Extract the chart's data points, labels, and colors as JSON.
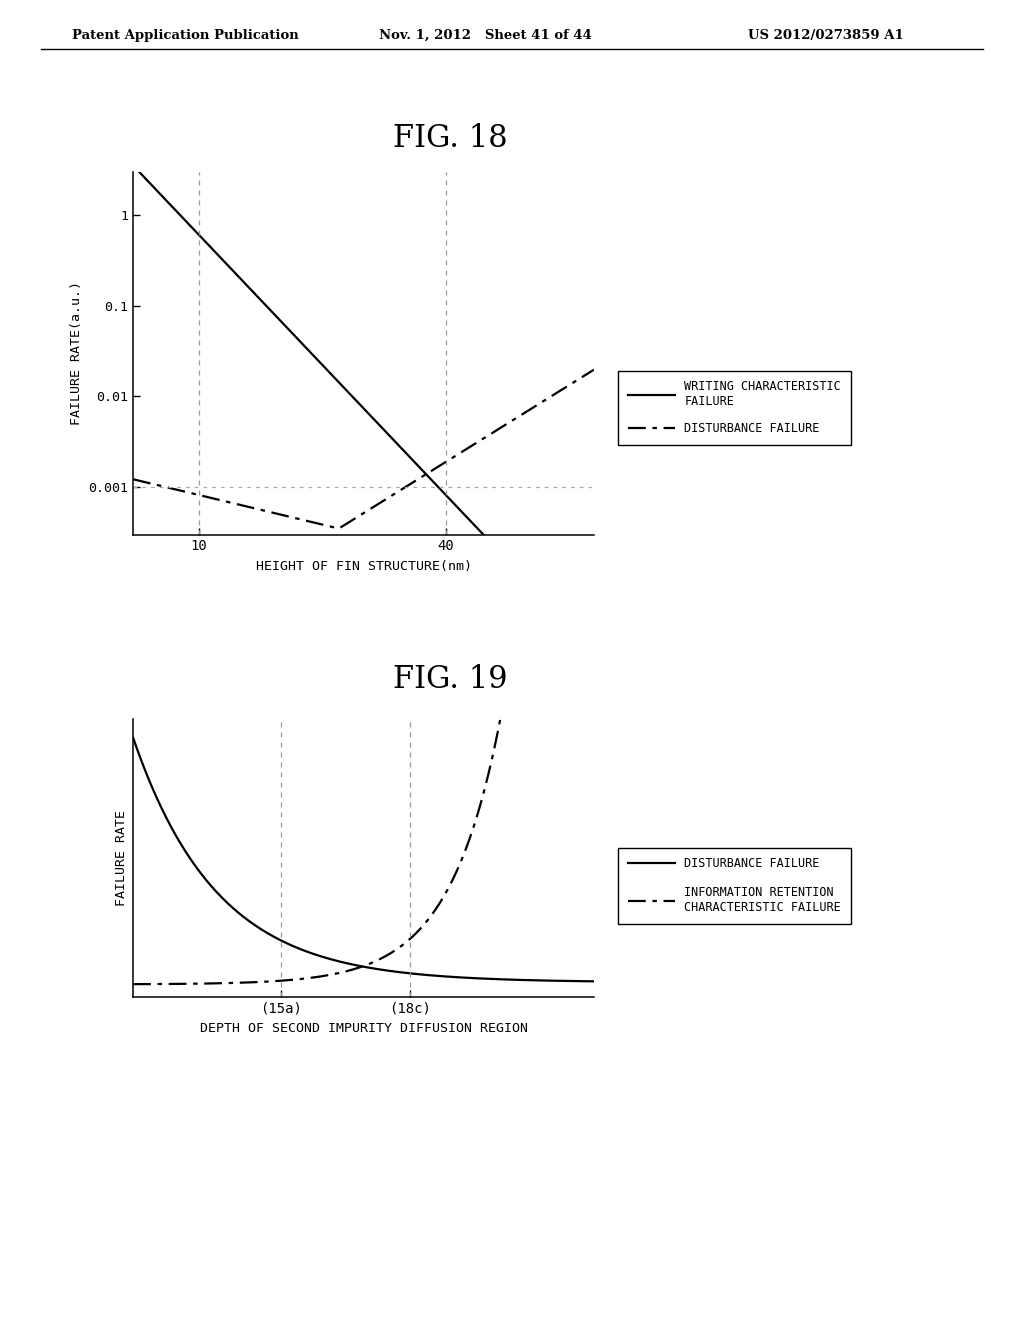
{
  "fig_title1": "FIG. 18",
  "fig_title2": "FIG. 19",
  "header_left": "Patent Application Publication",
  "header_mid": "Nov. 1, 2012   Sheet 41 of 44",
  "header_right": "US 2012/0273859 A1",
  "fig18": {
    "xlabel": "HEIGHT OF FIN STRUCTURE(nm)",
    "ylabel": "FAILURE RATE(a.u.)",
    "yticks": [
      "0.001",
      "0.01",
      "0.1",
      "1"
    ],
    "yvals": [
      0.001,
      0.01,
      0.1,
      1
    ],
    "xtick_vals": [
      10,
      40
    ],
    "vline_x": [
      10,
      40
    ],
    "hline_y": 0.001,
    "legend1": "WRITING CHARACTERISTIC\nFAILURE",
    "legend2": "DISTURBANCE FAILURE",
    "xmin": 2,
    "xmax": 58,
    "ymin": 0.0003,
    "ymax": 3.0
  },
  "fig19": {
    "xlabel": "DEPTH OF SECOND IMPURITY DIFFUSION REGION",
    "ylabel": "FAILURE RATE",
    "xtick_labels": [
      "(15a)",
      "(18c)"
    ],
    "legend1": "DISTURBANCE FAILURE",
    "legend2": "INFORMATION RETENTION\nCHARACTERISTIC FAILURE",
    "x_15a": 3.2,
    "x_18c": 6.0,
    "xmin": 0,
    "xmax": 10,
    "ymin": -0.3,
    "ymax": 6.5
  },
  "bg_color": "#ffffff",
  "line_color": "#000000",
  "vline_color": "#999999",
  "hline_color": "#aaaaaa"
}
